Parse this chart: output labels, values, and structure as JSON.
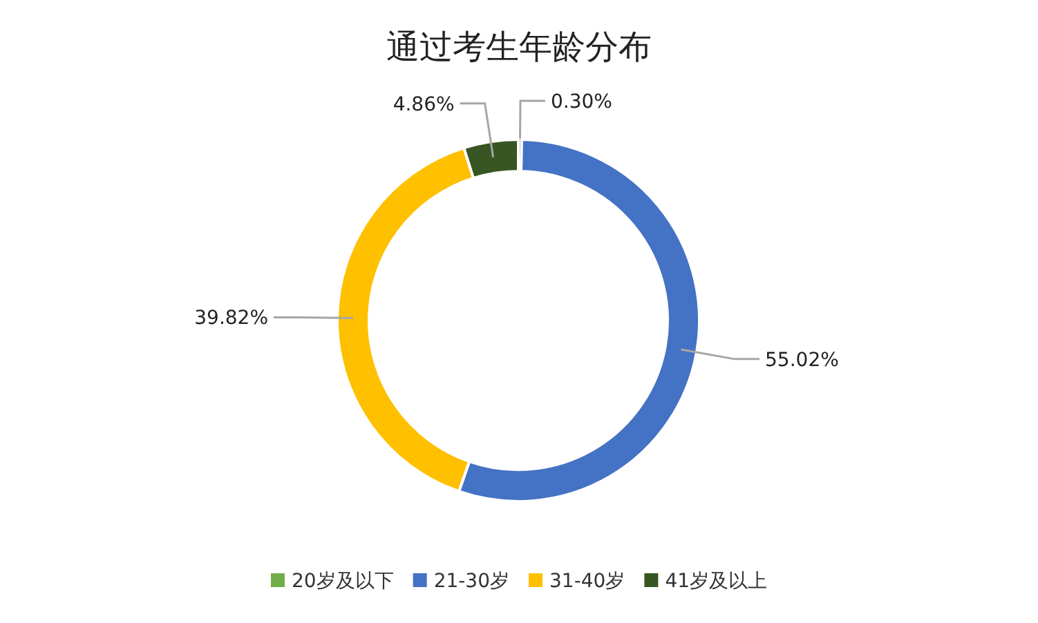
{
  "chart_data": {
    "type": "donut",
    "title": "通过考生年龄分布",
    "categories": [
      "20岁及以下",
      "21-30岁",
      "31-40岁",
      "41岁及以上"
    ],
    "values": [
      0.3,
      55.02,
      39.82,
      4.86
    ],
    "value_labels": [
      "0.30%",
      "55.02%",
      "39.82%",
      "4.86%"
    ],
    "colors": [
      "#70ad47",
      "#4472c4",
      "#ffc000",
      "#375623"
    ],
    "legend": "bottom"
  }
}
